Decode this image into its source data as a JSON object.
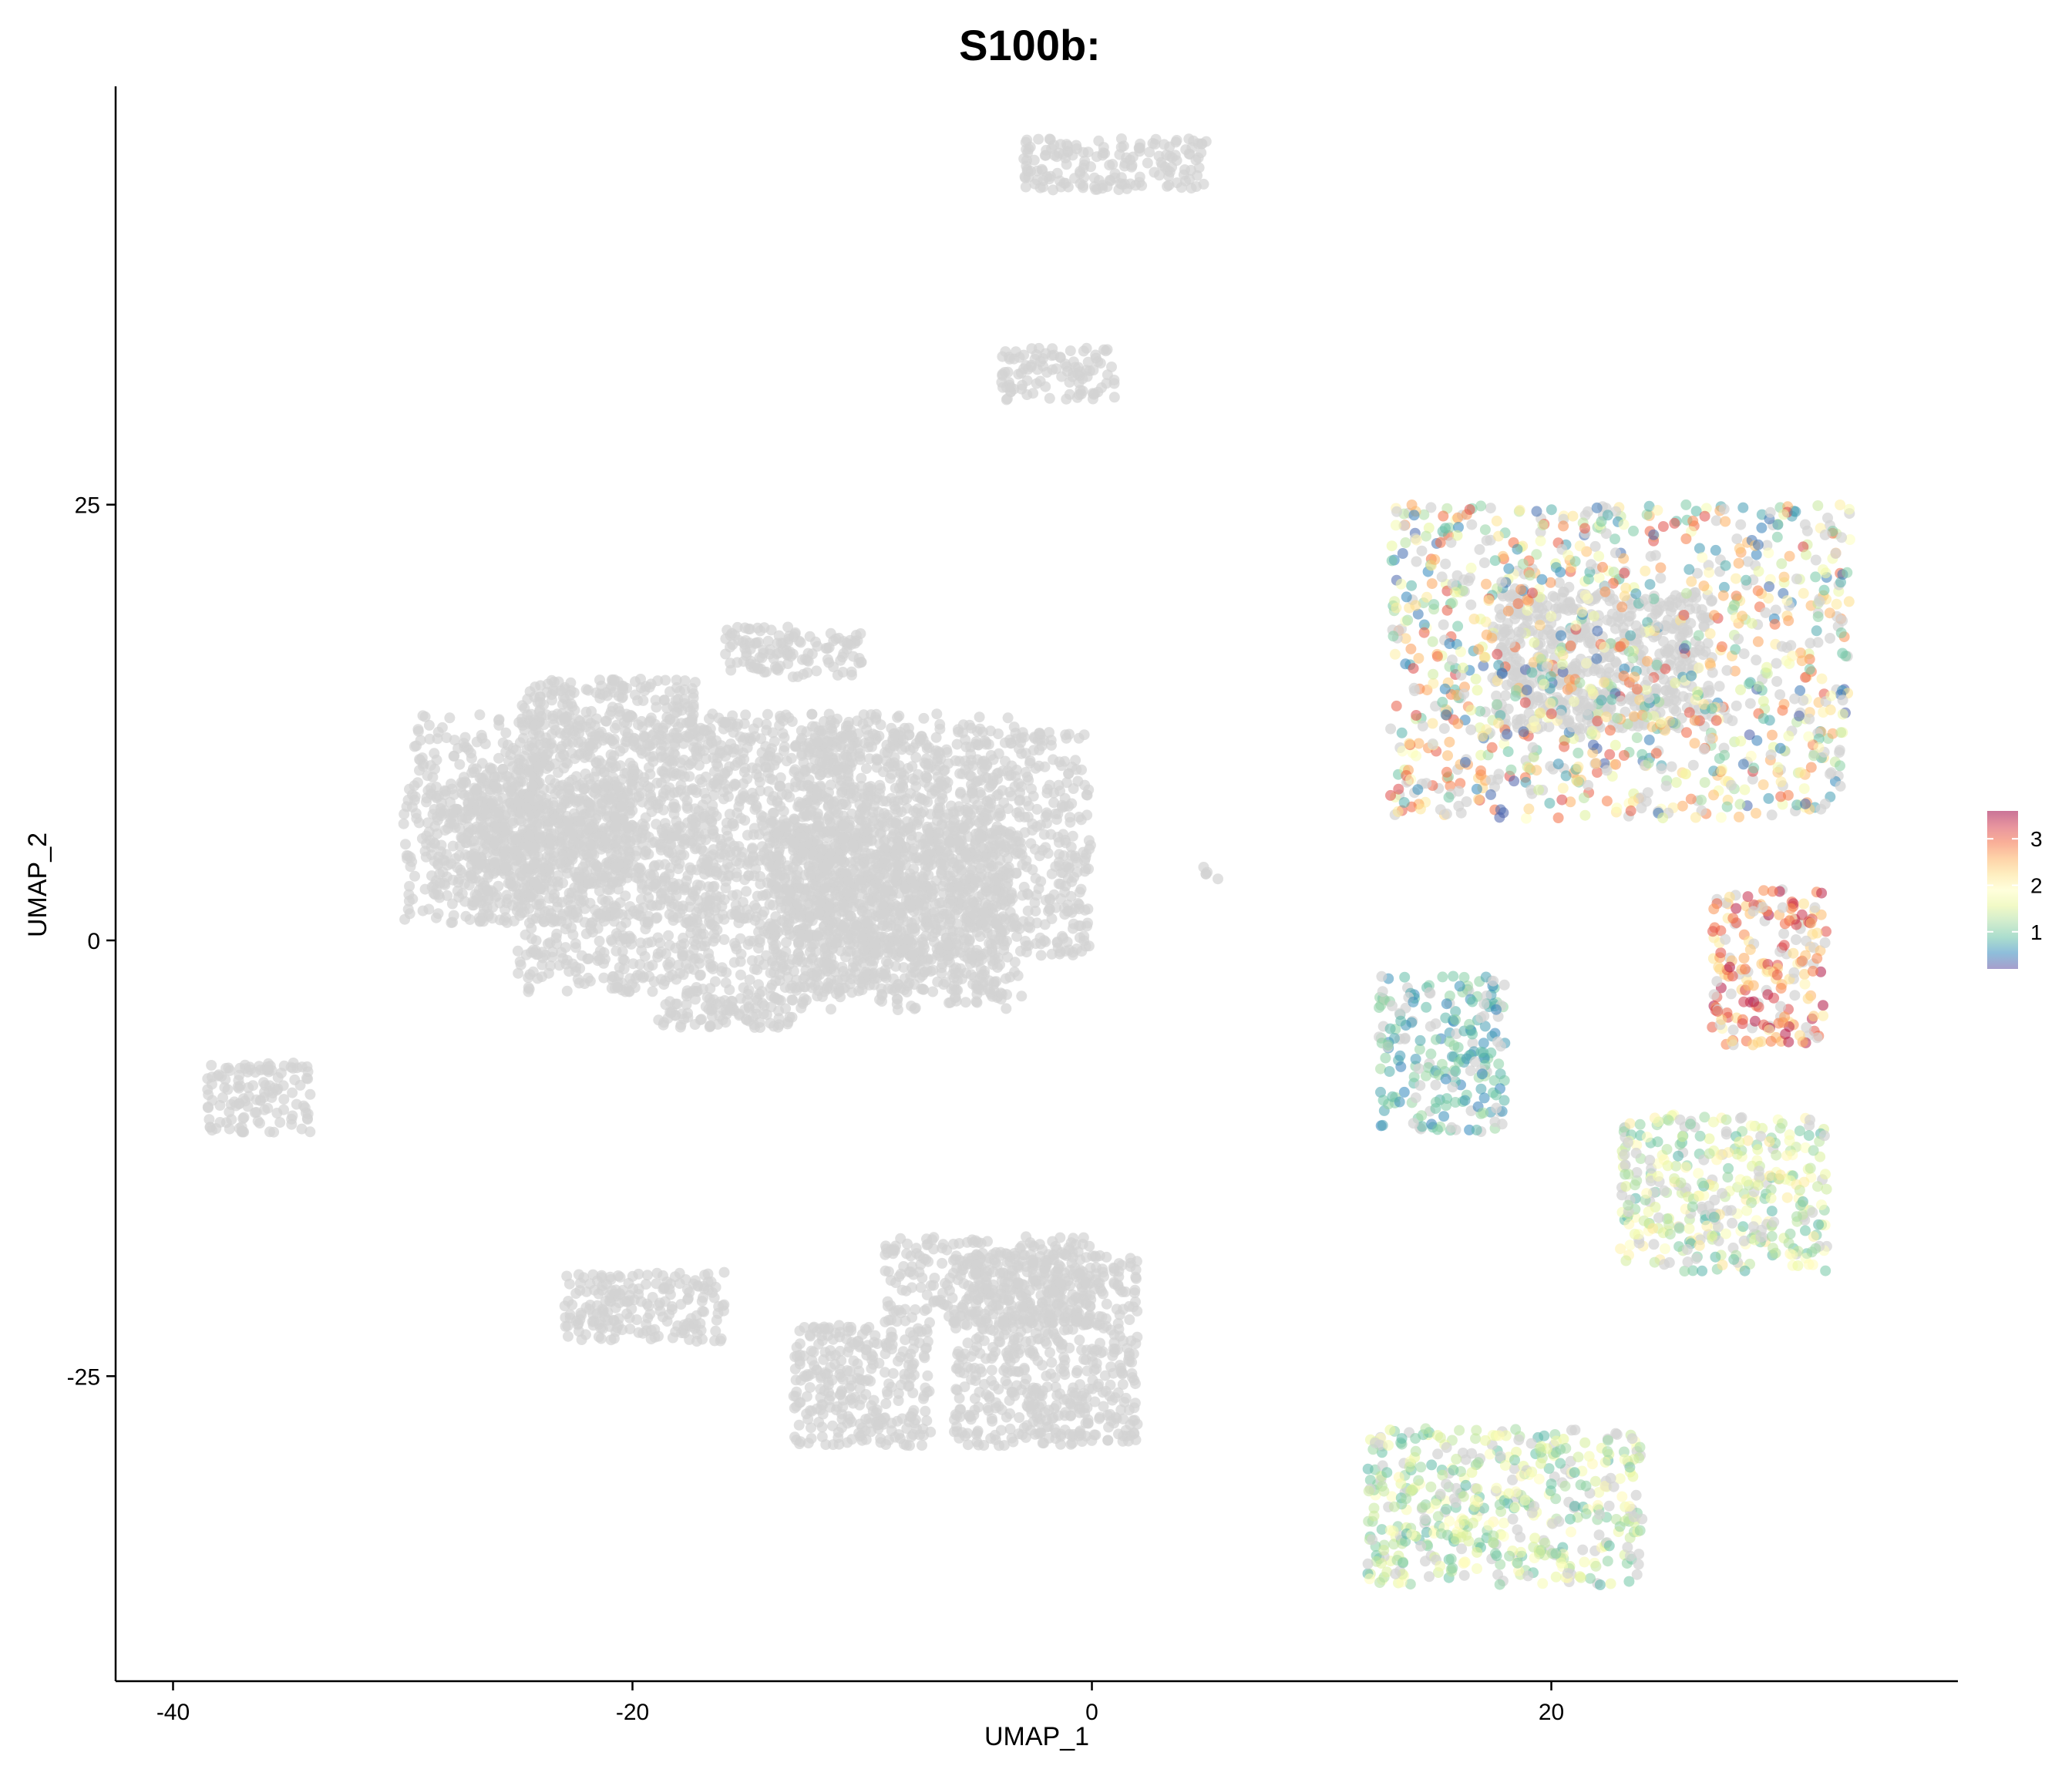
{
  "chart_data": {
    "type": "scatter",
    "title": "S100b:",
    "xlabel": "UMAP_1",
    "ylabel": "UMAP_2",
    "xlim": [
      -42.5,
      37.7
    ],
    "ylim": [
      -42.5,
      49.0
    ],
    "x_ticks": [
      -40,
      -20,
      0,
      20
    ],
    "x_tick_labels": [
      "-40",
      "-20",
      "0",
      "20"
    ],
    "y_ticks": [
      -25,
      0,
      25
    ],
    "y_tick_labels": [
      "-25",
      "0",
      "25"
    ],
    "grid": false,
    "legend": {
      "placement": "right",
      "type": "colorbar",
      "ticks": [
        1,
        2,
        3
      ],
      "tick_labels": [
        "1",
        "2",
        "3"
      ],
      "range": [
        0.2,
        3.6
      ],
      "colormap": [
        "#5e4fa2",
        "#3288bd",
        "#66c2a5",
        "#abdda4",
        "#e6f598",
        "#ffffbf",
        "#fee08b",
        "#fdae61",
        "#f46d43",
        "#d53e4f",
        "#9e0142"
      ]
    },
    "background_color": "#d3d3d3",
    "point_opacity": 0.55,
    "background_clusters": [
      {
        "x": [
          -30,
          -10
        ],
        "y": [
          1,
          13
        ]
      },
      {
        "x": [
          -25,
          -17
        ],
        "y": [
          -3,
          15
        ]
      },
      {
        "x": [
          -17,
          -3
        ],
        "y": [
          -4,
          13
        ]
      },
      {
        "x": [
          -13,
          0
        ],
        "y": [
          -1,
          12
        ]
      },
      {
        "x": [
          -29,
          -20
        ],
        "y": [
          3,
          9
        ]
      },
      {
        "x": [
          -27,
          -24
        ],
        "y": [
          1,
          10
        ]
      },
      {
        "x": [
          -14,
          -4
        ],
        "y": [
          -3,
          7
        ]
      },
      {
        "x": [
          -16,
          -10
        ],
        "y": [
          15,
          18
        ]
      },
      {
        "x": [
          -19,
          -13
        ],
        "y": [
          -5,
          -3
        ]
      },
      {
        "x": [
          -38.5,
          -34
        ],
        "y": [
          -11,
          -7
        ]
      },
      {
        "x": [
          -23,
          -16
        ],
        "y": [
          -23,
          -19
        ]
      },
      {
        "x": [
          -13,
          -7
        ],
        "y": [
          -29,
          -22
        ]
      },
      {
        "x": [
          -6,
          2
        ],
        "y": [
          -29,
          -18
        ]
      },
      {
        "x": [
          -9,
          0
        ],
        "y": [
          -22,
          -17
        ]
      },
      {
        "x": [
          -4,
          1
        ],
        "y": [
          31,
          34
        ]
      },
      {
        "x": [
          -3,
          5
        ],
        "y": [
          43,
          46
        ]
      },
      {
        "x": [
          17.5,
          27
        ],
        "y": [
          12,
          20
        ]
      },
      {
        "x": [
          4.5,
          5.5
        ],
        "y": [
          3.5,
          4.2
        ]
      }
    ],
    "expressing_clusters": [
      {
        "x": [
          13,
          33
        ],
        "y": [
          7,
          25
        ],
        "value_range": [
          0.3,
          3.2
        ]
      },
      {
        "x": [
          27,
          32
        ],
        "y": [
          -6,
          3
        ],
        "value_range": [
          2.0,
          3.5
        ]
      },
      {
        "x": [
          23,
          32
        ],
        "y": [
          -19,
          -10
        ],
        "value_range": [
          0.8,
          2.2
        ]
      },
      {
        "x": [
          12,
          24
        ],
        "y": [
          -37,
          -28
        ],
        "value_range": [
          0.8,
          2.0
        ]
      },
      {
        "x": [
          12.5,
          18
        ],
        "y": [
          -11,
          -2
        ],
        "value_range": [
          0.5,
          1.2
        ]
      }
    ]
  }
}
